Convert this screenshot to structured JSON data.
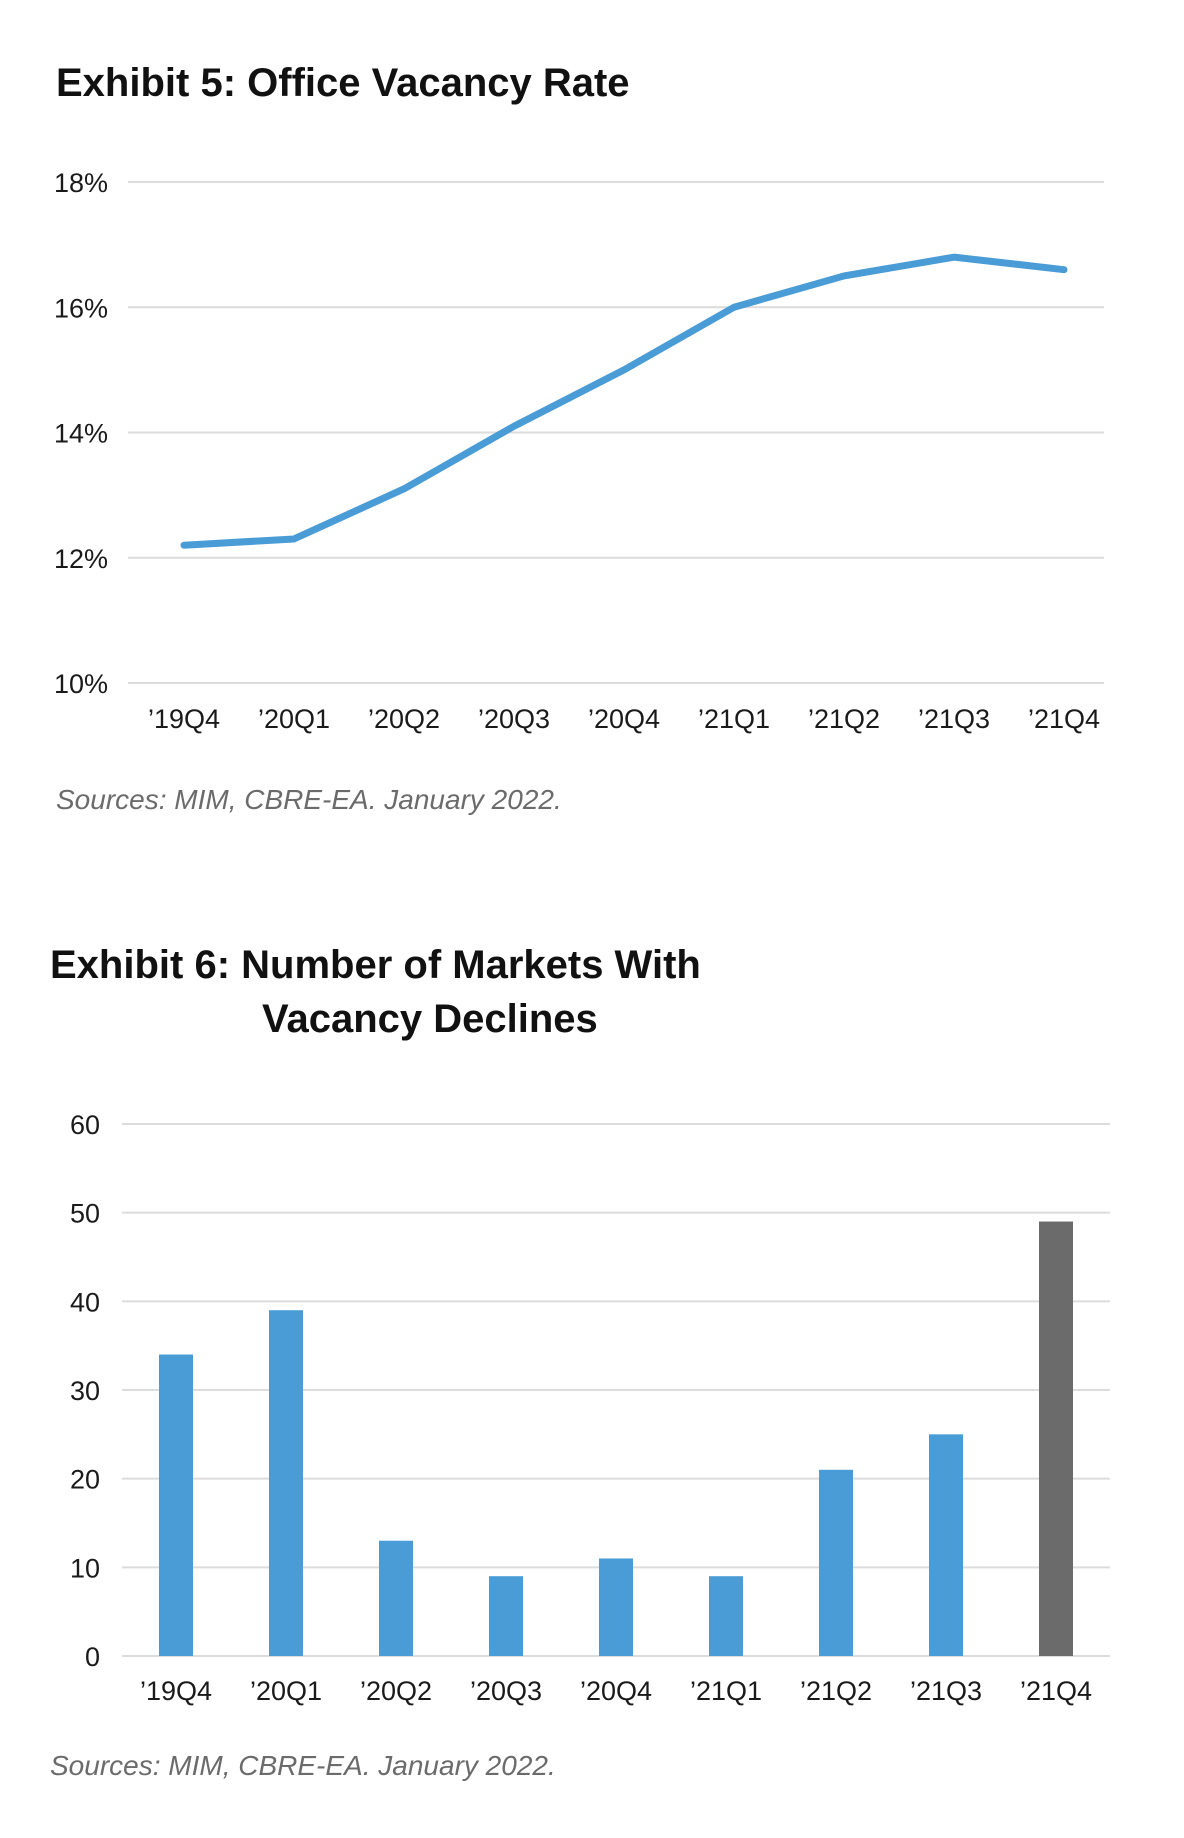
{
  "exhibit5": {
    "title": "Exhibit 5: Office Vacancy Rate",
    "source": "Sources: MIM, CBRE-EA. January 2022."
  },
  "exhibit6": {
    "title_line1": "Exhibit 6: Number of Markets With",
    "title_line2": "Vacancy Declines",
    "source": "Sources: MIM, CBRE-EA. January 2022."
  },
  "chart_data": [
    {
      "type": "line",
      "title": "Exhibit 5: Office Vacancy Rate",
      "xlabel": "",
      "ylabel": "",
      "categories": [
        "’19Q4",
        "’20Q1",
        "’20Q2",
        "’20Q3",
        "’20Q4",
        "’21Q1",
        "’21Q2",
        "’21Q3",
        "’21Q4"
      ],
      "values": [
        12.2,
        12.3,
        13.1,
        14.1,
        15.0,
        16.0,
        16.5,
        16.8,
        16.6
      ],
      "ylim": [
        10,
        18
      ],
      "yticks": [
        "10%",
        "12%",
        "14%",
        "16%",
        "18%"
      ],
      "ytick_values": [
        10,
        12,
        14,
        16,
        18
      ],
      "grid": true,
      "color": "#4a9cd6"
    },
    {
      "type": "bar",
      "title": "Exhibit 6: Number of Markets With Vacancy Declines",
      "xlabel": "",
      "ylabel": "",
      "categories": [
        "’19Q4",
        "’20Q1",
        "’20Q2",
        "’20Q3",
        "’20Q4",
        "’21Q1",
        "’21Q2",
        "’21Q3",
        "’21Q4"
      ],
      "values": [
        34,
        39,
        13,
        9,
        11,
        9,
        21,
        25,
        49
      ],
      "ylim": [
        0,
        60
      ],
      "yticks": [
        "0",
        "10",
        "20",
        "30",
        "40",
        "50",
        "60"
      ],
      "ytick_values": [
        0,
        10,
        20,
        30,
        40,
        50,
        60
      ],
      "grid": true,
      "bar_colors": [
        "#4a9cd6",
        "#4a9cd6",
        "#4a9cd6",
        "#4a9cd6",
        "#4a9cd6",
        "#4a9cd6",
        "#4a9cd6",
        "#4a9cd6",
        "#6b6b6b"
      ]
    }
  ]
}
